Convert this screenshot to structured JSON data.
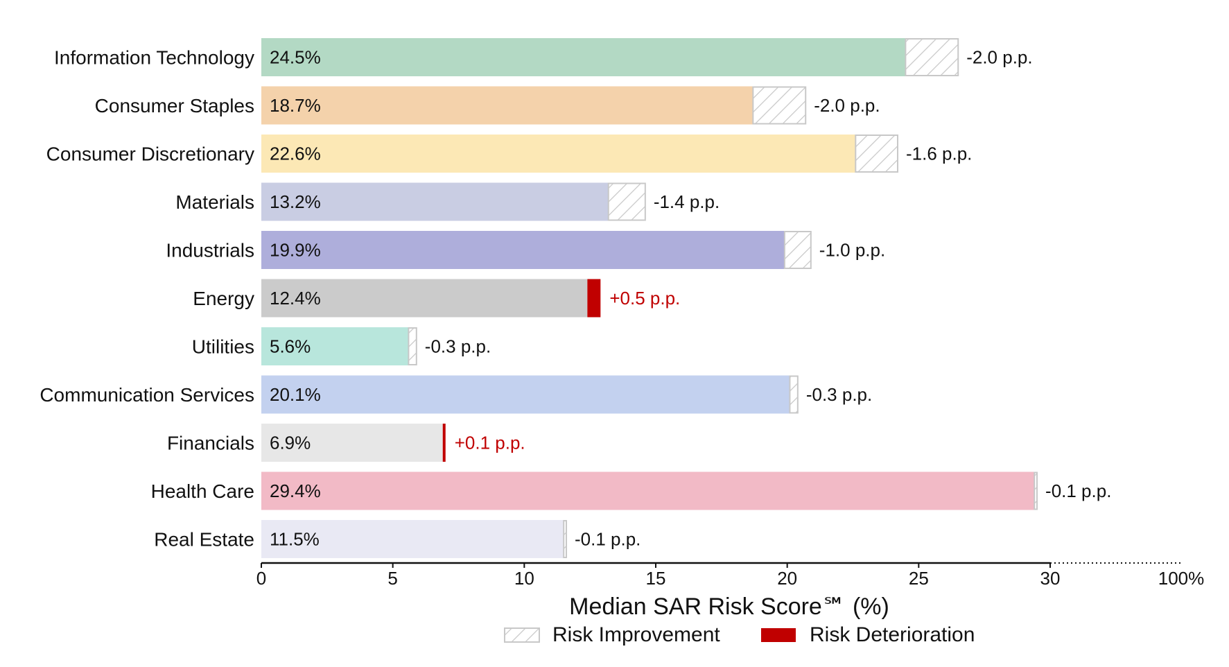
{
  "chart_data": {
    "type": "bar",
    "orientation": "horizontal",
    "xlabel": "Median SAR Risk Score℠ (%)",
    "xlim": [
      0,
      30
    ],
    "x_ticks": [
      "0",
      "5",
      "10",
      "15",
      "20",
      "25",
      "30"
    ],
    "x_extra_tick": "100%",
    "legend": {
      "position": "bottom",
      "items": [
        {
          "key": "improvement",
          "label": "Risk Improvement"
        },
        {
          "key": "deterioration",
          "label": "Risk Deterioration"
        }
      ]
    },
    "colors": {
      "deterioration": "#c00000",
      "hatch": "#c8c8c8",
      "text": "#111111"
    },
    "categories": [
      {
        "name": "Information Technology",
        "value": 24.5,
        "value_label": "24.5%",
        "delta": -2.0,
        "delta_label": "-2.0 p.p.",
        "color": "#b3d9c4"
      },
      {
        "name": "Consumer Staples",
        "value": 18.7,
        "value_label": "18.7%",
        "delta": -2.0,
        "delta_label": "-2.0 p.p.",
        "color": "#f4d2ab"
      },
      {
        "name": "Consumer Discretionary",
        "value": 22.6,
        "value_label": "22.6%",
        "delta": -1.6,
        "delta_label": "-1.6 p.p.",
        "color": "#fce8b5"
      },
      {
        "name": "Materials",
        "value": 13.2,
        "value_label": "13.2%",
        "delta": -1.4,
        "delta_label": "-1.4 p.p.",
        "color": "#c9cde3"
      },
      {
        "name": "Industrials",
        "value": 19.9,
        "value_label": "19.9%",
        "delta": -1.0,
        "delta_label": "-1.0 p.p.",
        "color": "#aeaedb"
      },
      {
        "name": "Energy",
        "value": 12.4,
        "value_label": "12.4%",
        "delta": 0.5,
        "delta_label": "+0.5 p.p.",
        "color": "#cbcbcb"
      },
      {
        "name": "Utilities",
        "value": 5.6,
        "value_label": "5.6%",
        "delta": -0.3,
        "delta_label": "-0.3 p.p.",
        "color": "#b8e6dc"
      },
      {
        "name": "Communication Services",
        "value": 20.1,
        "value_label": "20.1%",
        "delta": -0.3,
        "delta_label": "-0.3 p.p.",
        "color": "#c3d1ef"
      },
      {
        "name": "Financials",
        "value": 6.9,
        "value_label": "6.9%",
        "delta": 0.1,
        "delta_label": "+0.1 p.p.",
        "color": "#e7e7e7"
      },
      {
        "name": "Health Care",
        "value": 29.4,
        "value_label": "29.4%",
        "delta": -0.1,
        "delta_label": "-0.1 p.p.",
        "color": "#f2bac6"
      },
      {
        "name": "Real Estate",
        "value": 11.5,
        "value_label": "11.5%",
        "delta": -0.1,
        "delta_label": "-0.1 p.p.",
        "color": "#e9e9f4"
      }
    ]
  }
}
